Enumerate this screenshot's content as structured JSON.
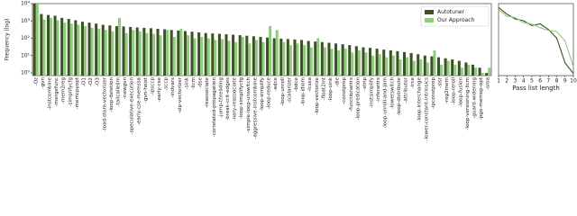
{
  "chart_data": [
    {
      "type": "bar",
      "ylabel": "Frequency (log)",
      "log": true,
      "legend": "upper right",
      "categories": [
        "-Oz",
        "-gvn",
        "-instcombine",
        "-mergefunc",
        "-mem2reg",
        "-simplifycfg",
        "-memcpyopt",
        "-O1",
        "-O2",
        "-O3",
        "-load-store-vectorizer",
        "-loop-deletion",
        "-tailcallelim",
        "-newgvn",
        "-speculative-execution",
        "-early-cse-memssa",
        "-gvn-hoist",
        "-ipsccp",
        "-early-cse",
        "-sccp",
        "-indvars",
        "-slp-vectorizer",
        "-sink",
        "-licm",
        "-dse",
        "-reassociate",
        "-correlated-propagation",
        "-jump-threading",
        "-break-crit-edges",
        "-nary-reassociate",
        "-loop-simplifycfg",
        "-simple-loop-unswitch",
        "-aggressive-instcombine",
        "-loop-simplify",
        "-loop-reduce",
        "-adce",
        "-loop-unroll",
        "-scalarizer",
        "-bdce",
        "-loop-idiom",
        "-lcssa",
        "-loop-vectorize",
        "-float2int",
        "-loop-sink",
        "-die",
        "-constprop",
        "-functionattrs",
        "-loop-predication",
        "-strip",
        "-instsimplify",
        "-inferattrs",
        "-loop-unroll-and-jam",
        "-lowerswitch",
        "-loop-distribute",
        "-attributor",
        "-irce",
        "-loop-interchange",
        "-lower-constant-intrinsics",
        "-ipconstprop",
        "-slsr",
        "-reg2mem",
        "-loop-reroll",
        "-loop-fusion",
        "-loop-versioning-licm",
        "-guard-widening",
        "-pgo-memop-opt",
        "-sroa"
      ],
      "series": [
        {
          "name": "Autotuner",
          "color": "#3b5323",
          "values": [
            10000,
            2500,
            2200,
            2000,
            1500,
            1300,
            1100,
            900,
            800,
            700,
            600,
            550,
            500,
            480,
            450,
            420,
            400,
            380,
            350,
            330,
            300,
            280,
            260,
            240,
            220,
            200,
            190,
            180,
            170,
            160,
            150,
            140,
            130,
            120,
            110,
            100,
            95,
            90,
            85,
            80,
            70,
            65,
            60,
            55,
            50,
            45,
            40,
            35,
            30,
            28,
            25,
            22,
            20,
            18,
            16,
            14,
            12,
            10,
            9,
            8,
            7,
            6,
            5,
            4,
            3,
            2,
            1
          ]
        },
        {
          "name": "Our Approach",
          "color": "#8fcc7e",
          "values": [
            10000,
            1200,
            1500,
            1100,
            800,
            700,
            600,
            500,
            400,
            350,
            300,
            250,
            1500,
            200,
            300,
            250,
            200,
            180,
            150,
            300,
            120,
            350,
            150,
            100,
            120,
            100,
            80,
            90,
            70,
            60,
            120,
            50,
            80,
            60,
            500,
            300,
            60,
            40,
            50,
            40,
            30,
            100,
            30,
            25,
            20,
            25,
            15,
            20,
            15,
            10,
            12,
            8,
            10,
            6,
            8,
            5,
            6,
            4,
            20,
            3,
            5,
            3,
            2,
            3,
            2,
            1,
            2
          ]
        }
      ],
      "ylim": [
        0.7,
        10000
      ],
      "yticks": [
        {
          "value": 1,
          "label": "10⁰"
        },
        {
          "value": 10,
          "label": "10¹"
        },
        {
          "value": 100,
          "label": "10²"
        },
        {
          "value": 1000,
          "label": "10³"
        },
        {
          "value": 10000,
          "label": "10⁴"
        }
      ]
    },
    {
      "type": "line",
      "xlabel": "Pass list length",
      "log": true,
      "x": [
        1,
        2,
        3,
        4,
        5,
        6,
        7,
        8,
        9,
        10
      ],
      "series": [
        {
          "name": "Autotuner",
          "color": "#3b5323",
          "values": [
            1000,
            500,
            300,
            250,
            150,
            180,
            100,
            40,
            3,
            1
          ]
        },
        {
          "name": "Our Approach",
          "color": "#8fcc7e",
          "values": [
            800,
            400,
            350,
            200,
            180,
            120,
            90,
            80,
            30,
            2
          ]
        }
      ],
      "xlim": [
        1,
        10
      ],
      "xticks": [
        1,
        2,
        3,
        4,
        5,
        6,
        7,
        8,
        9,
        10
      ],
      "ylim": [
        0.8,
        1500
      ]
    }
  ]
}
